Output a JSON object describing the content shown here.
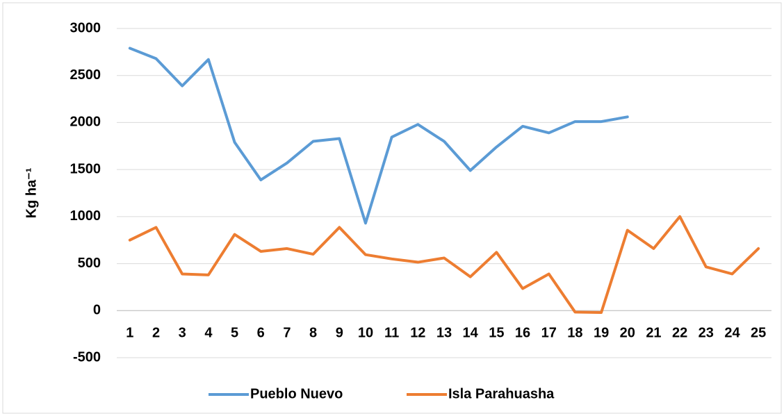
{
  "chart_data": {
    "type": "line",
    "y_label": "Kg ha⁻¹",
    "categories": [
      "1",
      "2",
      "3",
      "4",
      "5",
      "6",
      "7",
      "8",
      "9",
      "10",
      "11",
      "12",
      "13",
      "14",
      "15",
      "16",
      "17",
      "18",
      "19",
      "20",
      "21",
      "22",
      "23",
      "24",
      "25"
    ],
    "series": [
      {
        "name": "Pueblo Nuevo",
        "color": "#5b9bd5",
        "values": [
          2790,
          2680,
          2390,
          2670,
          1790,
          1390,
          1570,
          1800,
          1830,
          930,
          1845,
          1980,
          1800,
          1490,
          1740,
          1960,
          1890,
          2010,
          2010,
          2060,
          null,
          null,
          null,
          null,
          null
        ]
      },
      {
        "name": "Isla Parahuasha",
        "color": "#ed7d31",
        "values": [
          750,
          885,
          390,
          380,
          810,
          630,
          660,
          600,
          885,
          595,
          550,
          515,
          560,
          360,
          620,
          235,
          390,
          -15,
          -20,
          855,
          660,
          1000,
          465,
          390,
          660
        ]
      }
    ],
    "ylim": [
      -500,
      3000
    ],
    "yticks": [
      -500,
      0,
      500,
      1000,
      1500,
      2000,
      2500,
      3000
    ],
    "grid": true,
    "legend": "bottom"
  }
}
